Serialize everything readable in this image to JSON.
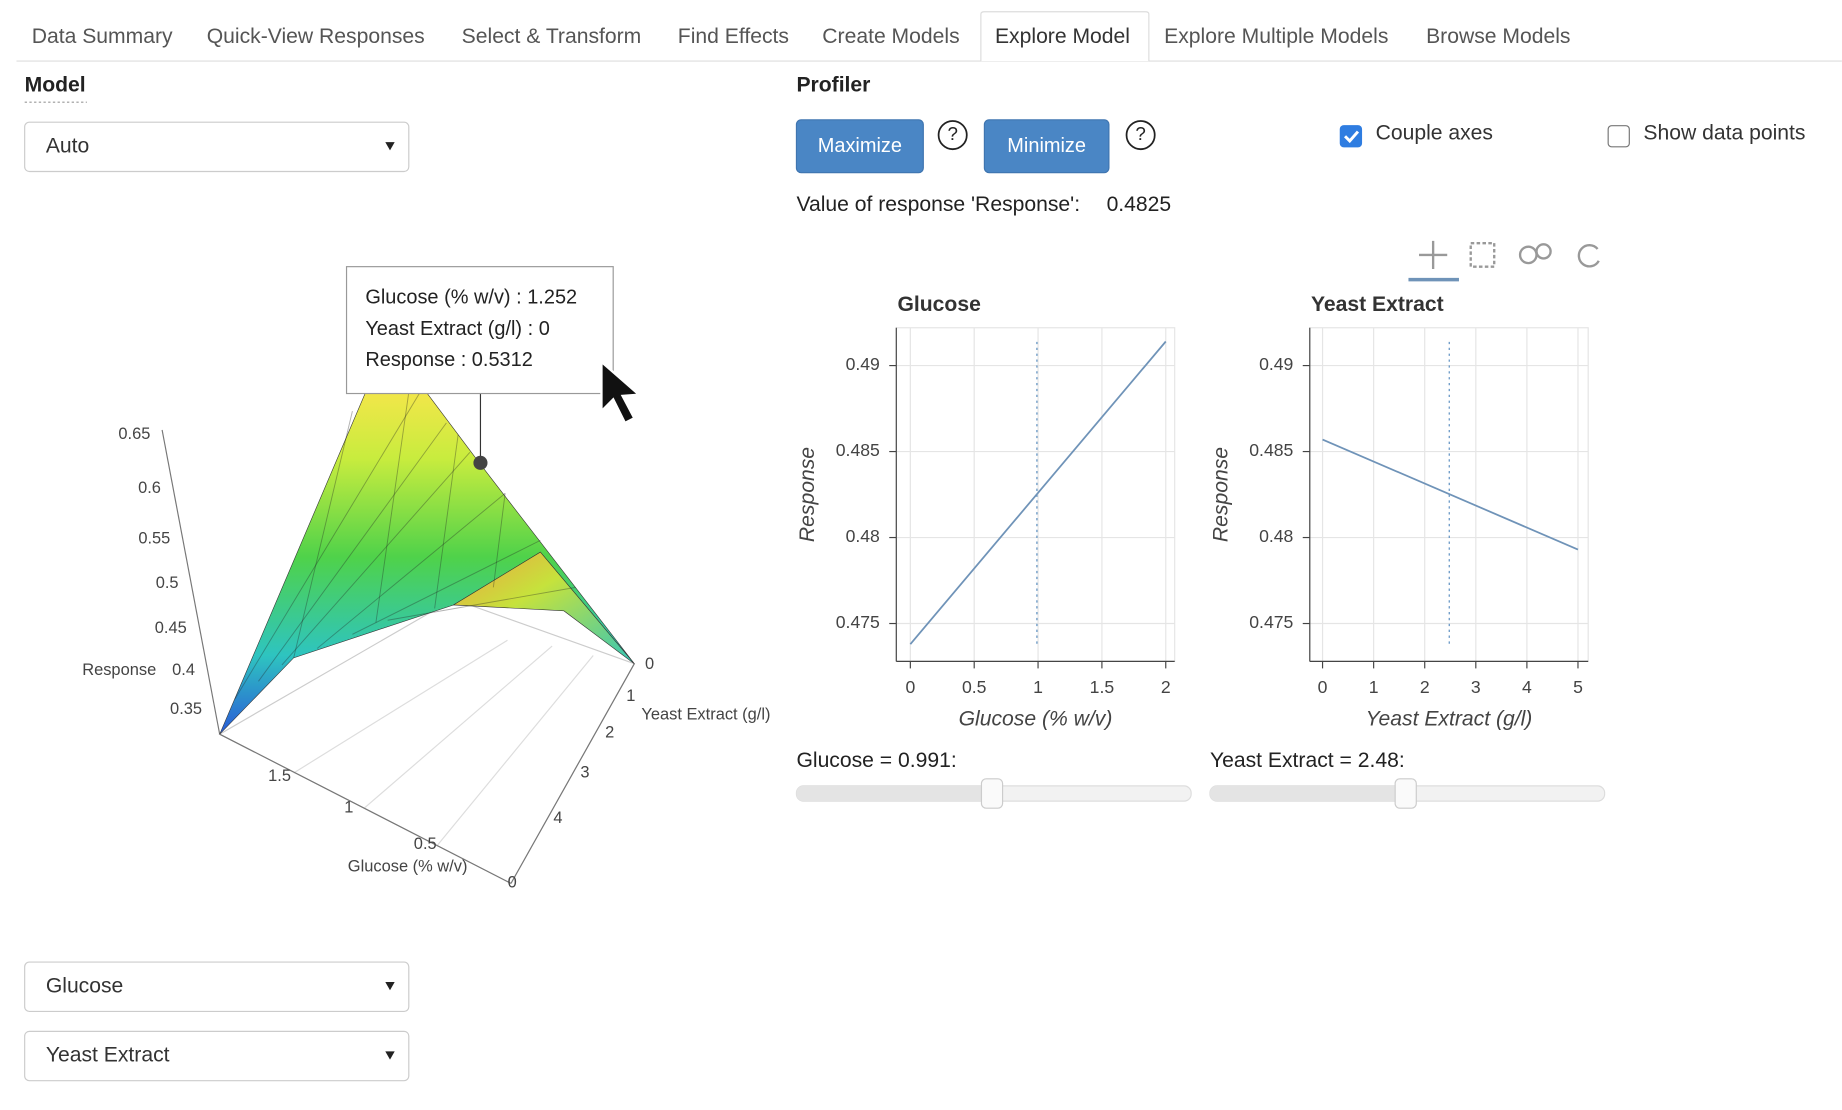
{
  "tabs": [
    "Data Summary",
    "Quick-View Responses",
    "Select & Transform",
    "Find Effects",
    "Create Models",
    "Explore Model",
    "Explore Multiple Models",
    "Browse Models"
  ],
  "model": {
    "heading": "Model",
    "select": "Auto"
  },
  "surface_plot": {
    "z_label": "Response",
    "z_ticks": [
      "0.65",
      "0.6",
      "0.55",
      "0.5",
      "0.45",
      "0.4",
      "0.35"
    ],
    "x_label": "Glucose (% w/v)",
    "x_ticks": [
      "1.5",
      "1",
      "0.5",
      "0"
    ],
    "y_label": "Yeast Extract (g/l)",
    "y_ticks": [
      "0",
      "1",
      "2",
      "3",
      "4"
    ],
    "tooltip": [
      "Glucose (% w/v) : 1.252",
      "Yeast Extract (g/l) : 0",
      "Response : 0.5312"
    ]
  },
  "factor_selects": [
    "Glucose",
    "Yeast Extract"
  ],
  "profiler": {
    "heading": "Profiler",
    "buttons": [
      "Maximize",
      "Minimize"
    ],
    "help": "?",
    "checkboxes": [
      "Couple axes",
      "Show data points"
    ],
    "response_label": "Value of response 'Response':",
    "response_value": "0.4825",
    "sliders": [
      "Glucose = 0.991:",
      "Yeast Extract = 2.48:"
    ]
  },
  "chart_data": [
    {
      "type": "line",
      "title": "Glucose",
      "x_label": "Glucose (% w/v)",
      "y_label": "Response",
      "x": [
        0,
        2
      ],
      "series": [
        {
          "color": "#6f93b8",
          "values": [
            0.4738,
            0.4914
          ]
        }
      ],
      "cursor_x": 0.991,
      "xlim": [
        -0.11,
        2.07
      ],
      "xticks": [
        0,
        0.5,
        1,
        1.5,
        2
      ],
      "ylim": [
        0.4728,
        0.4922
      ],
      "yticks": [
        0.475,
        0.48,
        0.485,
        0.49
      ],
      "grid": true
    },
    {
      "type": "line",
      "title": "Yeast Extract",
      "x_label": "Yeast Extract (g/l)",
      "y_label": "Response",
      "x": [
        0,
        5
      ],
      "series": [
        {
          "color": "#6f93b8",
          "values": [
            0.4857,
            0.4793
          ]
        }
      ],
      "cursor_x": 2.48,
      "xlim": [
        -0.25,
        5.2
      ],
      "xticks": [
        0,
        1,
        2,
        3,
        4,
        5
      ],
      "ylim": [
        0.4728,
        0.4922
      ],
      "yticks": [
        0.475,
        0.48,
        0.485,
        0.49
      ],
      "grid": true
    }
  ]
}
